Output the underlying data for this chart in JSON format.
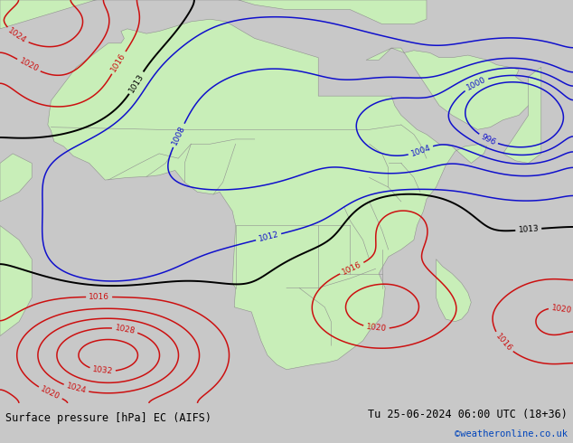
{
  "title_left": "Surface pressure [hPa] EC (AIFS)",
  "title_right": "Tu 25-06-2024 06:00 UTC (18+36)",
  "copyright": "©weatheronline.co.uk",
  "land_color": "#c8eeb8",
  "sea_color": "#d8d8d8",
  "bar_color": "#c8c8c8",
  "figsize": [
    6.34,
    4.9
  ],
  "dpi": 100
}
